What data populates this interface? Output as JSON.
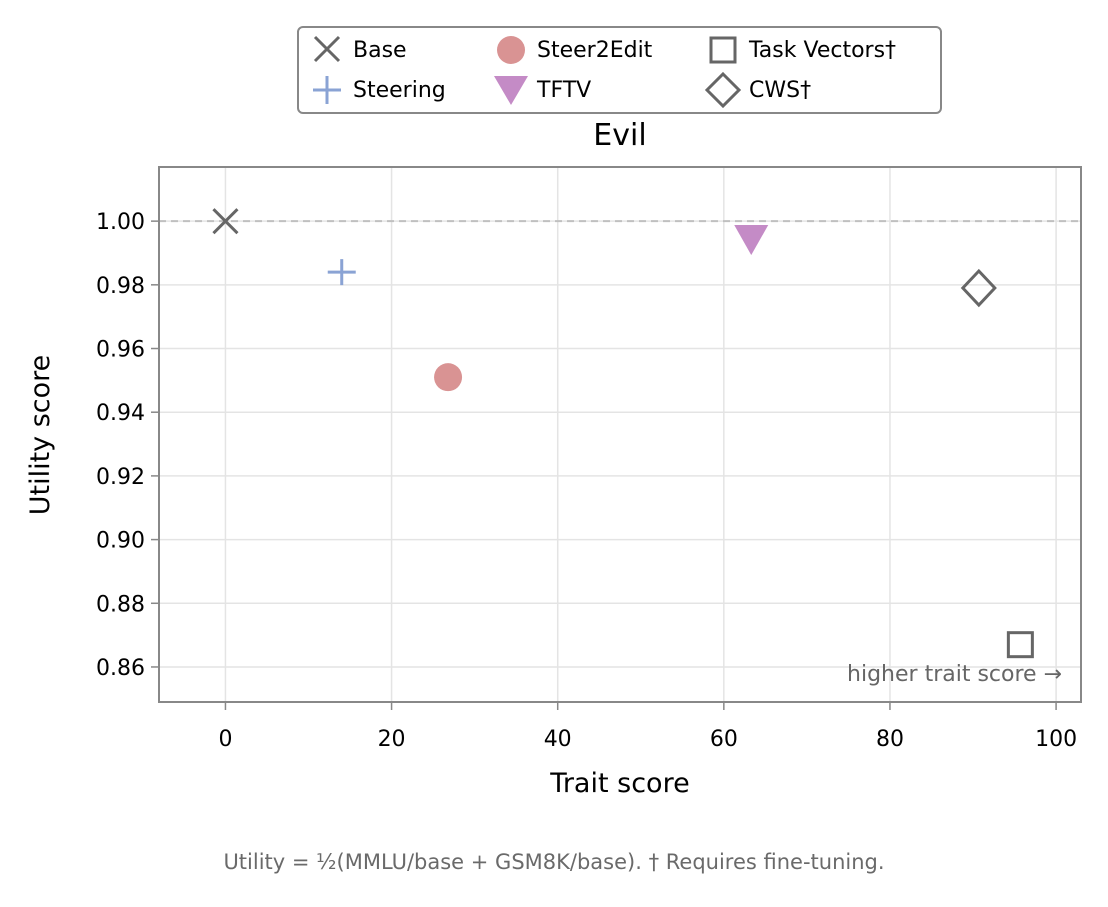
{
  "chart_data": {
    "type": "scatter",
    "title": "Evil",
    "xlabel": "Trait score",
    "ylabel": "Utility score",
    "xlim": [
      -8,
      103
    ],
    "ylim": [
      0.849,
      1.017
    ],
    "xticks": [
      0,
      20,
      40,
      60,
      80,
      100
    ],
    "yticks": [
      0.86,
      0.88,
      0.9,
      0.92,
      0.94,
      0.96,
      0.98,
      1.0
    ],
    "ytick_labels": [
      "0.86",
      "0.88",
      "0.90",
      "0.92",
      "0.94",
      "0.96",
      "0.98",
      "1.00"
    ],
    "grid": true,
    "reference_line_y": 1.0,
    "legend_position": "top-center",
    "annotation": "higher trait score →",
    "series": [
      {
        "name": "Base",
        "marker": "x",
        "color": "#666666",
        "x": 0,
        "y": 1.0
      },
      {
        "name": "Steering",
        "marker": "plus",
        "color": "#8aa3d4",
        "x": 14,
        "y": 0.984
      },
      {
        "name": "Steer2Edit",
        "marker": "circle",
        "color": "#d99393",
        "x": 26.8,
        "y": 0.951
      },
      {
        "name": "TFTV",
        "marker": "triangle-down",
        "color": "#c48bc6",
        "x": 63.3,
        "y": 0.995
      },
      {
        "name": "Task Vectors†",
        "marker": "square",
        "color": "#666666",
        "x": 95.7,
        "y": 0.867
      },
      {
        "name": "CWS†",
        "marker": "diamond",
        "color": "#666666",
        "x": 90.7,
        "y": 0.979
      }
    ]
  },
  "footnote": "Utility = ½(MMLU/base + GSM8K/base).  † Requires fine-tuning."
}
